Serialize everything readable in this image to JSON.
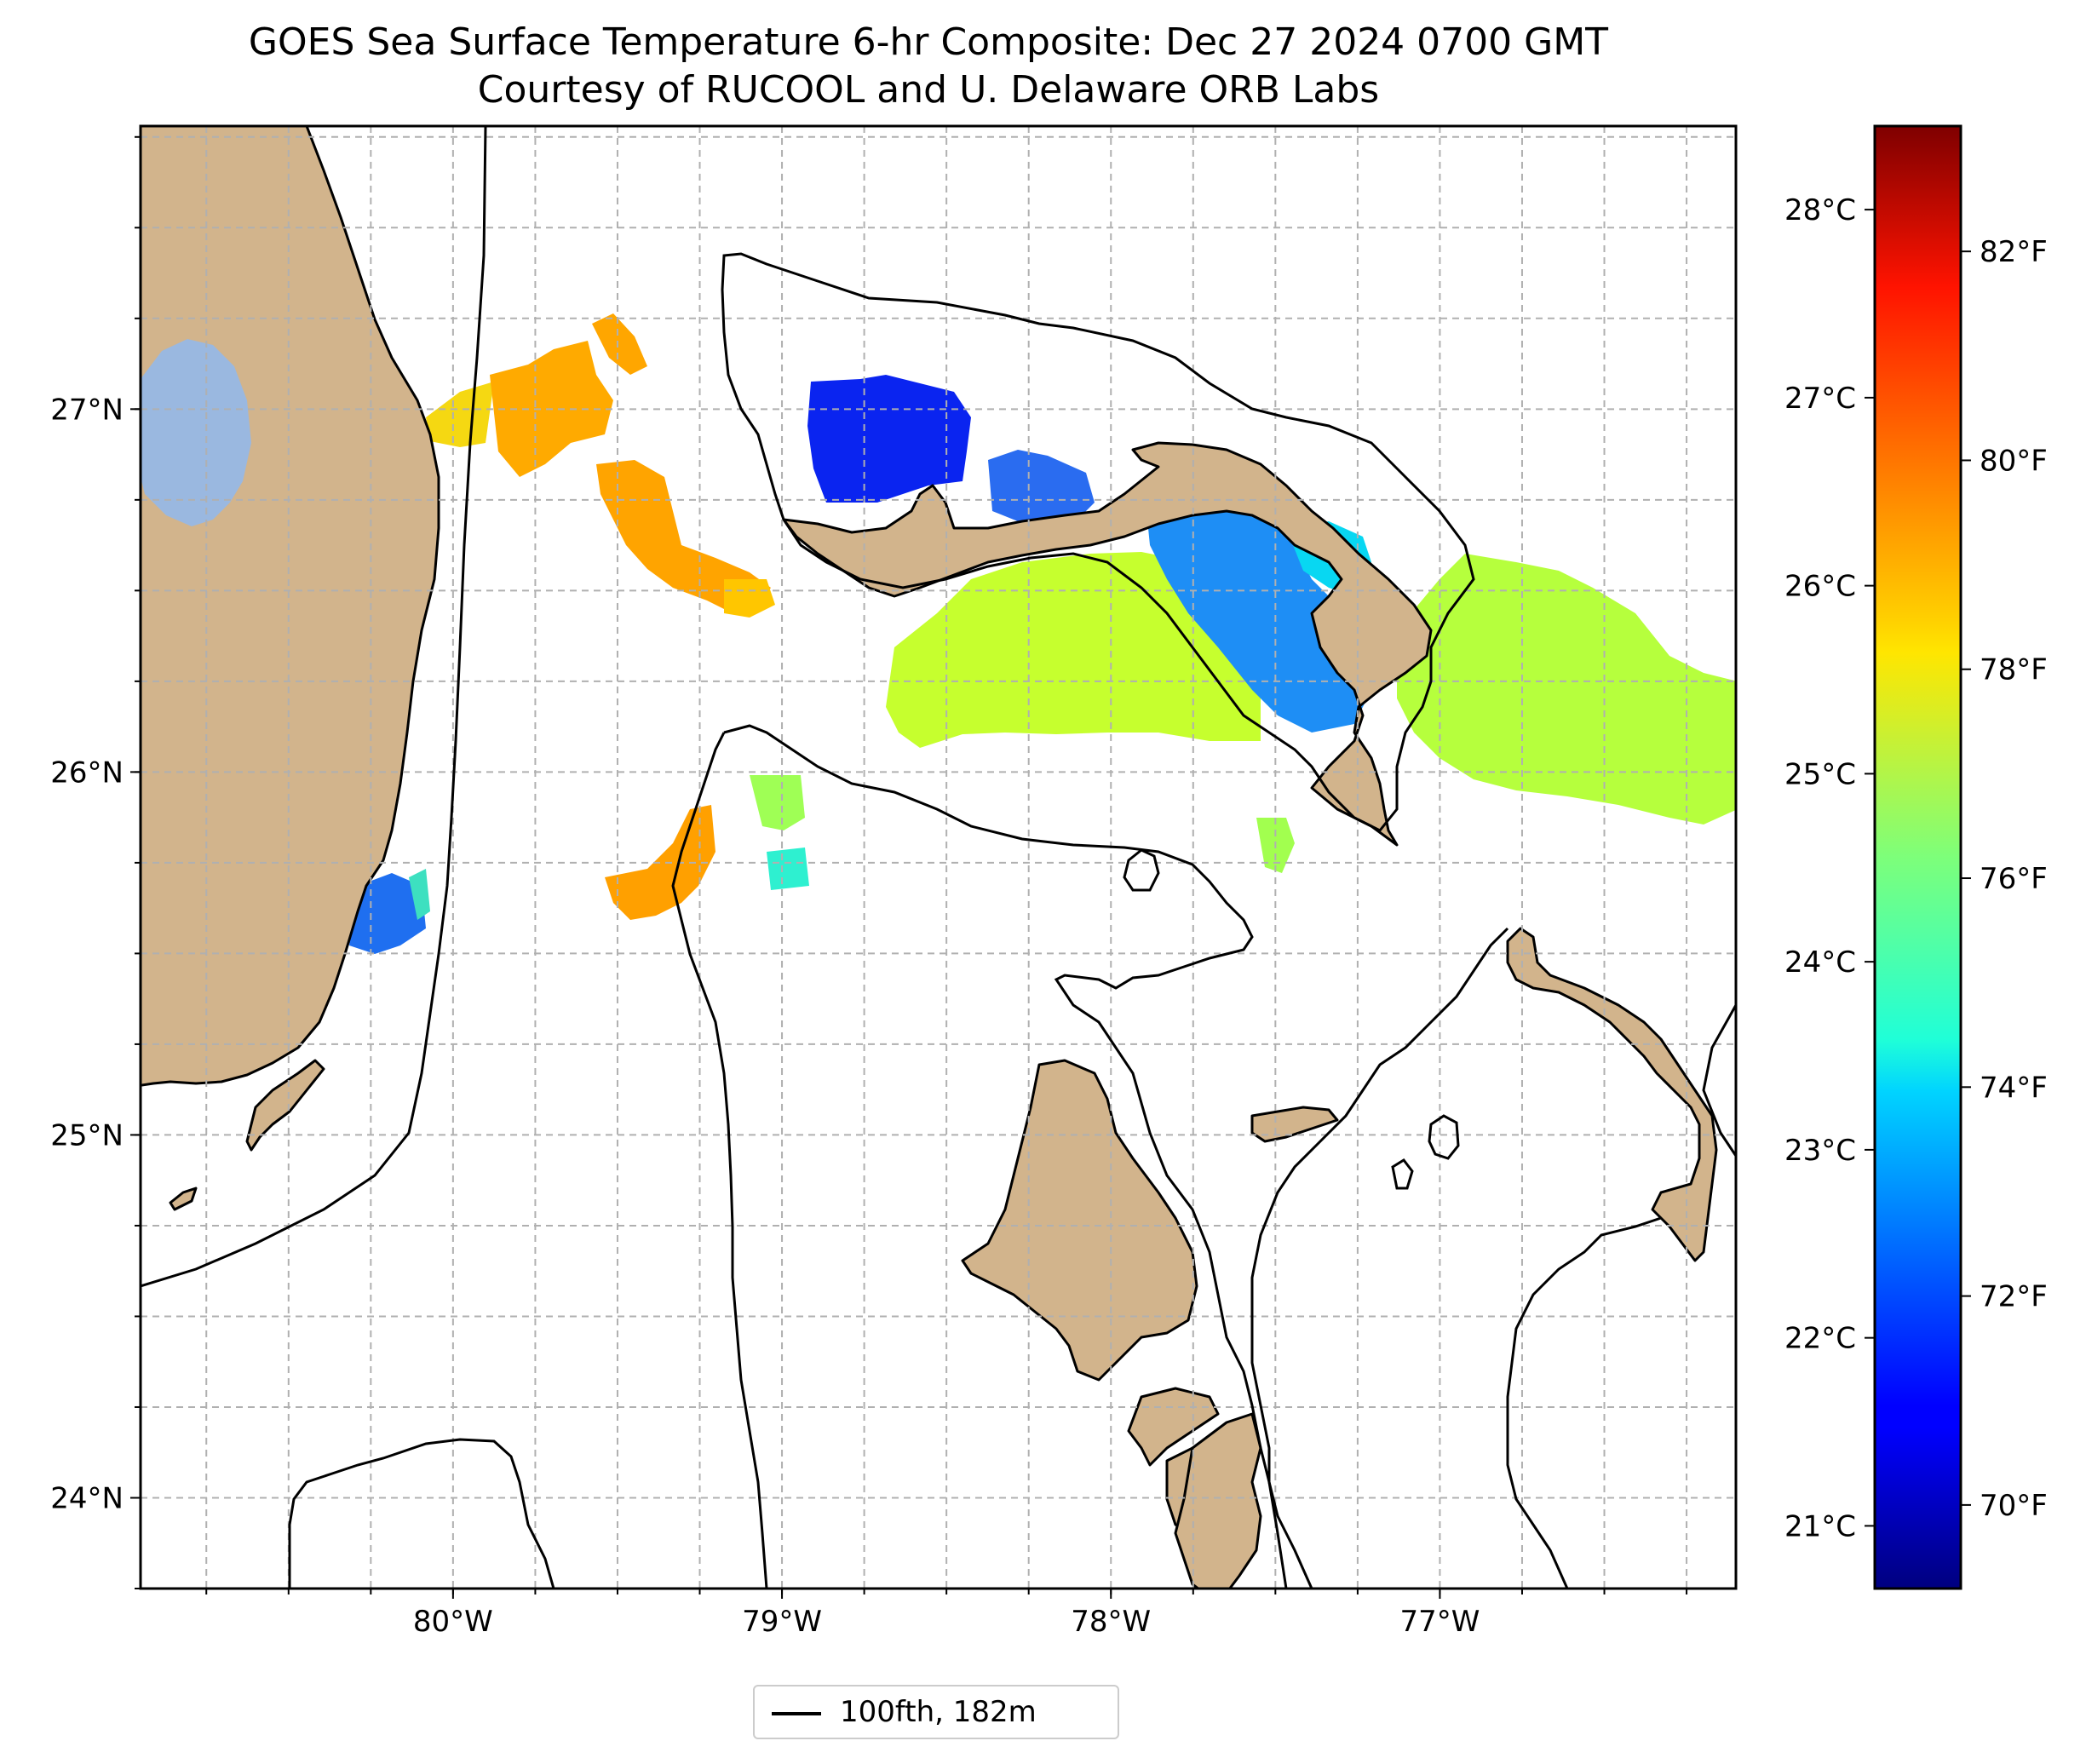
{
  "title": "GOES Sea Surface Temperature 6-hr Composite: Dec 27 2024 0700 GMT",
  "subtitle": "Courtesy of RUCOOL and U. Delaware ORB Labs",
  "map": {
    "lon_range": [
      -80.95,
      -76.1
    ],
    "lat_range": [
      23.75,
      27.78
    ],
    "lon_ticks": [
      -80,
      -79,
      -78,
      -77
    ],
    "lon_tick_labels": [
      "80°W",
      "79°W",
      "78°W",
      "77°W"
    ],
    "lat_ticks": [
      24,
      25,
      26,
      27
    ],
    "lat_tick_labels": [
      "24°N",
      "25°N",
      "26°N",
      "27°N"
    ],
    "grid": "dashed",
    "land_color": "#d2b48c",
    "lake_color": "#9ab8e0"
  },
  "colorbar": {
    "colormap": "jet",
    "range_f": [
      69.2,
      83.2
    ],
    "fahrenheit_ticks": [
      70,
      72,
      74,
      76,
      78,
      80,
      82
    ],
    "fahrenheit_labels": [
      "70°F",
      "72°F",
      "74°F",
      "76°F",
      "78°F",
      "80°F",
      "82°F"
    ],
    "celsius_ticks": [
      21,
      22,
      23,
      24,
      25,
      26,
      27,
      28
    ],
    "celsius_labels": [
      "21°C",
      "22°C",
      "23°C",
      "24°C",
      "25°C",
      "26°C",
      "27°C",
      "28°C"
    ]
  },
  "legend": {
    "placement": "bottom-center",
    "entry": "100fth, 182m"
  },
  "chart_data": {
    "type": "heatmap",
    "title": "GOES Sea Surface Temperature 6-hr Composite: Dec 27 2024 0700 GMT",
    "subtitle": "Courtesy of RUCOOL and U. Delaware ORB Labs",
    "units": "°F",
    "sst_patches": [
      {
        "lon": -79.85,
        "lat": 27.0,
        "temp_f": 78.0
      },
      {
        "lon": -79.55,
        "lat": 27.05,
        "temp_f": 79.0
      },
      {
        "lon": -79.3,
        "lat": 27.15,
        "temp_f": 79.2
      },
      {
        "lon": -79.3,
        "lat": 26.65,
        "temp_f": 79.0
      },
      {
        "lon": -79.15,
        "lat": 26.5,
        "temp_f": 78.4
      },
      {
        "lon": -78.75,
        "lat": 26.92,
        "temp_f": 70.5
      },
      {
        "lon": -78.35,
        "lat": 26.8,
        "temp_f": 72.2
      },
      {
        "lon": -77.55,
        "lat": 26.55,
        "temp_f": 72.8
      },
      {
        "lon": -77.45,
        "lat": 26.45,
        "temp_f": 73.8
      },
      {
        "lon": -78.15,
        "lat": 26.35,
        "temp_f": 77.2
      },
      {
        "lon": -77.5,
        "lat": 26.3,
        "temp_f": 77.4
      },
      {
        "lon": -76.6,
        "lat": 26.3,
        "temp_f": 77.0
      },
      {
        "lon": -79.25,
        "lat": 25.75,
        "temp_f": 79.0
      },
      {
        "lon": -79.0,
        "lat": 25.9,
        "temp_f": 76.5
      },
      {
        "lon": -79.0,
        "lat": 25.7,
        "temp_f": 74.8
      },
      {
        "lon": -80.2,
        "lat": 25.6,
        "temp_f": 72.6
      },
      {
        "lon": -77.5,
        "lat": 25.75,
        "temp_f": 76.5
      }
    ]
  }
}
